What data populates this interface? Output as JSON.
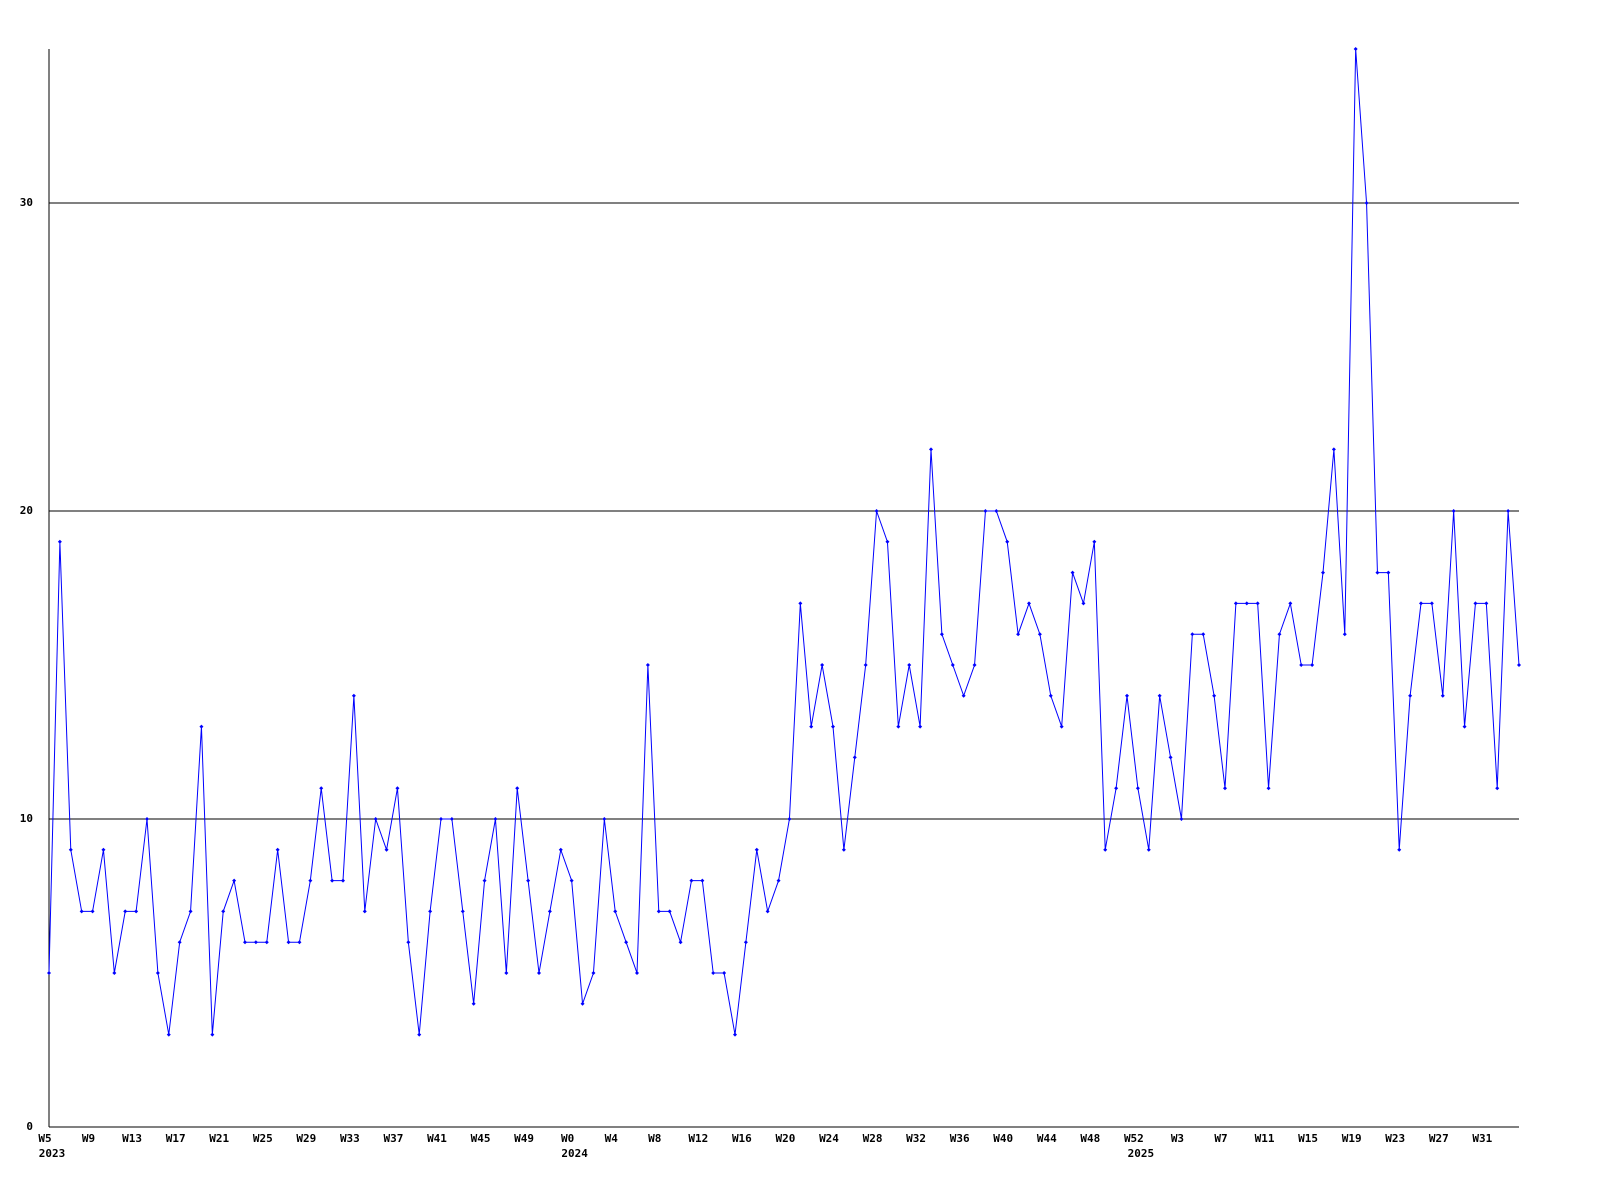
{
  "chart_data": {
    "type": "line",
    "categories": [
      "W5",
      null,
      null,
      null,
      "W9",
      null,
      null,
      null,
      "W13",
      null,
      null,
      null,
      "W17",
      null,
      null,
      null,
      "W21",
      null,
      null,
      null,
      "W25",
      null,
      null,
      null,
      "W29",
      null,
      null,
      null,
      "W33",
      null,
      null,
      null,
      "W37",
      null,
      null,
      null,
      "W41",
      null,
      null,
      null,
      "W45",
      null,
      null,
      null,
      "W49",
      null,
      null,
      null,
      "W0",
      null,
      null,
      null,
      "W4",
      null,
      null,
      null,
      "W8",
      null,
      null,
      null,
      "W12",
      null,
      null,
      null,
      "W16",
      null,
      null,
      null,
      "W20",
      null,
      null,
      null,
      "W24",
      null,
      null,
      null,
      "W28",
      null,
      null,
      null,
      "W32",
      null,
      null,
      null,
      "W36",
      null,
      null,
      null,
      "W40",
      null,
      null,
      null,
      "W44",
      null,
      null,
      null,
      "W48",
      null,
      null,
      null,
      "W52",
      null,
      null,
      null,
      "W3",
      null,
      null,
      null,
      "W7",
      null,
      null,
      null,
      "W11",
      null,
      null,
      null,
      "W15",
      null,
      null,
      null,
      "W19",
      null,
      null,
      null,
      "W23",
      null,
      null,
      null,
      "W27",
      null,
      null,
      null,
      "W31",
      null,
      null,
      null
    ],
    "year_labels": [
      "2023",
      null,
      null,
      null,
      null,
      null,
      null,
      null,
      null,
      null,
      null,
      null,
      null,
      null,
      null,
      null,
      null,
      null,
      null,
      null,
      null,
      null,
      null,
      null,
      null,
      null,
      null,
      null,
      null,
      null,
      null,
      null,
      null,
      null,
      null,
      null,
      null,
      null,
      null,
      null,
      null,
      null,
      null,
      null,
      null,
      null,
      null,
      null,
      "2024",
      null,
      null,
      null,
      null,
      null,
      null,
      null,
      null,
      null,
      null,
      null,
      null,
      null,
      null,
      null,
      null,
      null,
      null,
      null,
      null,
      null,
      null,
      null,
      null,
      null,
      null,
      null,
      null,
      null,
      null,
      null,
      null,
      null,
      null,
      null,
      null,
      null,
      null,
      null,
      null,
      null,
      null,
      null,
      null,
      null,
      null,
      null,
      null,
      null,
      null,
      null,
      "2025",
      null,
      null,
      null,
      null,
      null,
      null,
      null,
      null,
      null,
      null,
      null,
      null,
      null,
      null,
      null,
      null,
      null,
      null,
      null,
      null,
      null,
      null,
      null,
      null,
      null,
      null,
      null,
      null,
      null,
      null,
      null,
      null,
      null,
      null,
      null
    ],
    "series": [
      {
        "color": "#0000ff",
        "values": [
          5,
          19,
          9,
          7,
          7,
          9,
          5,
          7,
          7,
          10,
          5,
          3,
          6,
          7,
          13,
          3,
          7,
          8,
          6,
          6,
          6,
          9,
          6,
          6,
          8,
          11,
          8,
          8,
          14,
          7,
          10,
          9,
          11,
          6,
          3,
          7,
          10,
          10,
          7,
          4,
          8,
          10,
          5,
          11,
          8,
          5,
          7,
          9,
          8,
          4,
          5,
          10,
          7,
          6,
          5,
          15,
          7,
          7,
          6,
          8,
          8,
          5,
          5,
          3,
          6,
          9,
          7,
          8,
          10,
          17,
          13,
          15,
          13,
          9,
          12,
          15,
          20,
          19,
          13,
          15,
          13,
          22,
          16,
          15,
          14,
          15,
          20,
          20,
          19,
          16,
          17,
          16,
          14,
          13,
          18,
          17,
          19,
          9,
          11,
          14,
          11,
          9,
          14,
          12,
          10,
          16,
          16,
          14,
          11,
          17,
          17,
          17,
          11,
          16,
          17,
          15,
          15,
          18,
          22,
          16,
          35,
          30,
          18,
          18,
          9,
          14,
          17,
          17,
          14,
          20,
          13,
          17,
          17,
          11,
          20,
          15
        ]
      }
    ],
    "ylim": [
      0,
      35
    ],
    "yticks": [
      0,
      10,
      20,
      30
    ],
    "grid": true
  }
}
